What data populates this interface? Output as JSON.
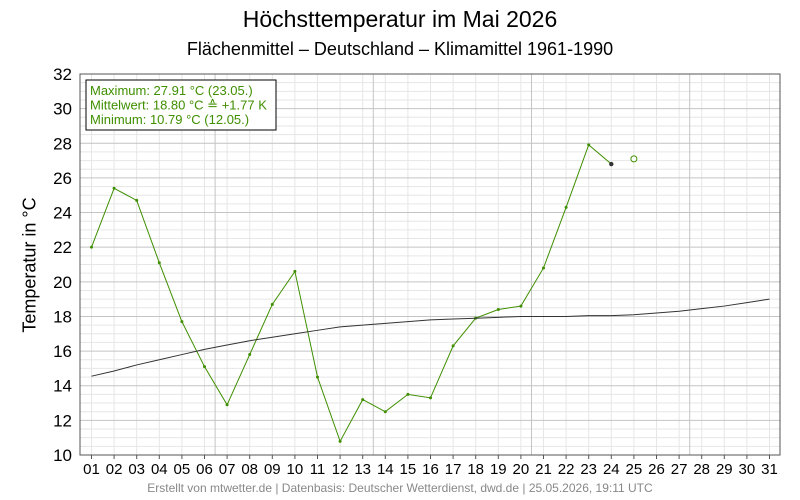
{
  "chart_data": {
    "type": "line",
    "title": "Höchsttemperatur im Mai 2026",
    "subtitle": "Flächenmittel – Deutschland – Klimamittel 1961-1990",
    "ylabel": "Temperatur in °C",
    "xlabel": "",
    "ylim": [
      10,
      32
    ],
    "yticks": [
      10,
      12,
      14,
      16,
      18,
      20,
      22,
      24,
      26,
      28,
      30,
      32
    ],
    "categories": [
      "01",
      "02",
      "03",
      "04",
      "05",
      "06",
      "07",
      "08",
      "09",
      "10",
      "11",
      "12",
      "13",
      "14",
      "15",
      "16",
      "17",
      "18",
      "19",
      "20",
      "21",
      "22",
      "23",
      "24",
      "25",
      "26",
      "27",
      "28",
      "29",
      "30",
      "31"
    ],
    "grid": true,
    "series": [
      {
        "name": "",
        "color": "#3f8f00",
        "values": [
          22.0,
          25.4,
          24.7,
          21.1,
          17.7,
          15.1,
          12.9,
          15.8,
          18.7,
          20.6,
          14.5,
          10.79,
          13.2,
          12.5,
          13.5,
          13.3,
          16.3,
          17.9,
          18.4,
          18.6,
          20.8,
          24.3,
          27.91,
          26.8,
          null,
          null,
          null,
          null,
          null,
          null,
          null
        ]
      },
      {
        "name": "",
        "color": "#333333",
        "values": [
          14.55,
          14.85,
          15.2,
          15.5,
          15.8,
          16.1,
          16.35,
          16.6,
          16.8,
          17.0,
          17.2,
          17.4,
          17.5,
          17.6,
          17.7,
          17.8,
          17.85,
          17.9,
          17.95,
          18.0,
          18.0,
          18.0,
          18.05,
          18.05,
          18.1,
          18.2,
          18.3,
          18.45,
          18.6,
          18.8,
          19.0
        ]
      }
    ],
    "forecast_point": {
      "day": "25",
      "value": 27.1,
      "color": "#3f8f00"
    },
    "legend": {
      "placement": "top-left",
      "lines": [
        "Maximum: 27.91 °C  (23.05.)",
        "Mittelwert: 18.80 °C ≙ +1.77 K",
        "Minimum:  10.79 °C  (12.05.)"
      ]
    },
    "footer": "Erstellt von mtwetter.de | Datenbasis: Deutscher Wetterdienst, dwd.de | 25.05.2026, 19:11 UTC"
  }
}
